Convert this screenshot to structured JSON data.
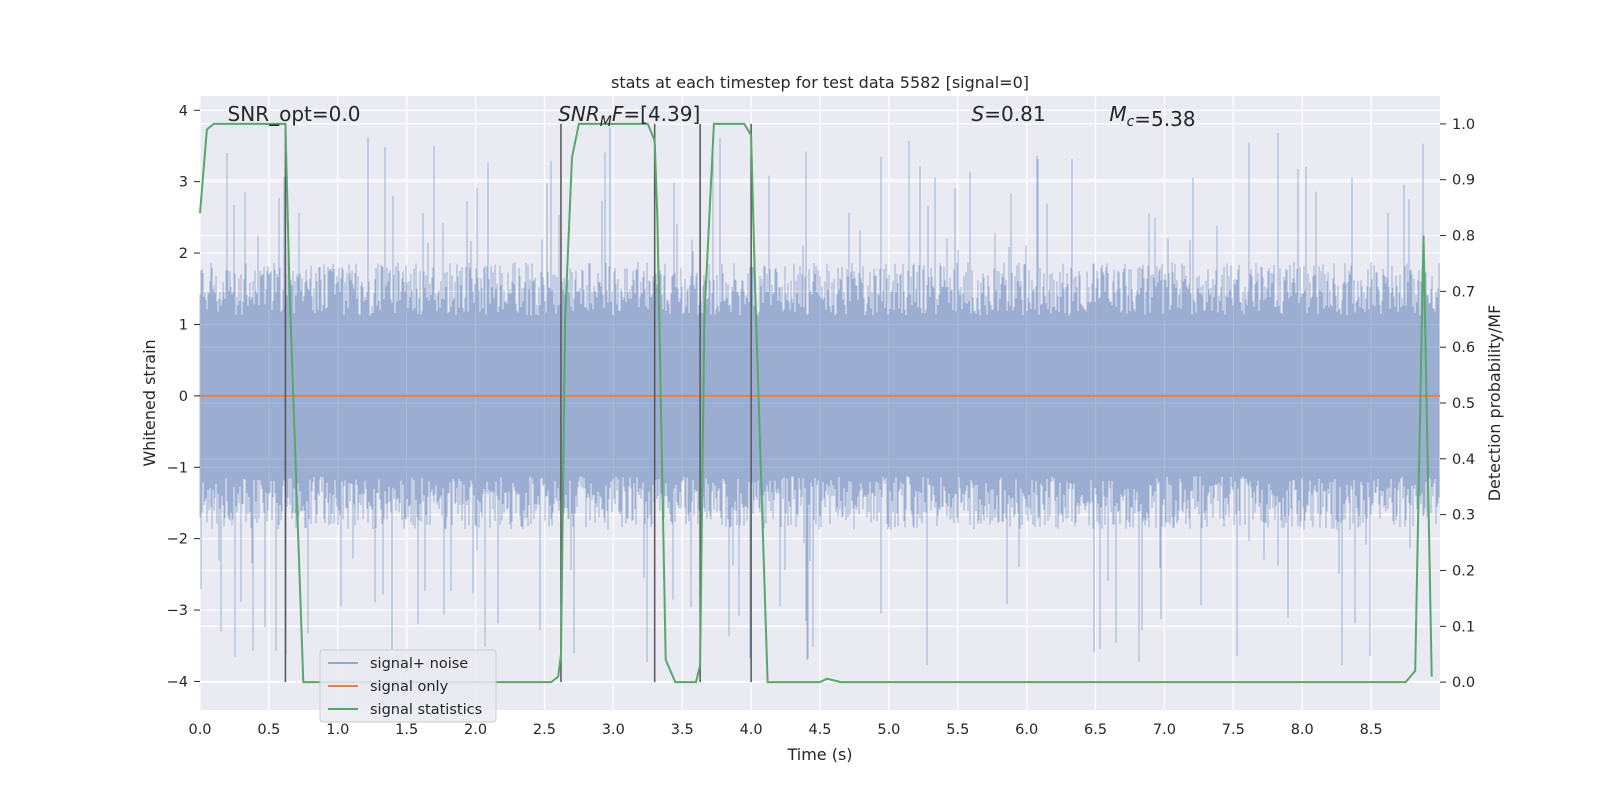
{
  "chart_data": {
    "type": "line",
    "title": "stats at each timestep for test data 5582 [signal=0]",
    "xlabel": "Time (s)",
    "ylabel": "Whitened strain",
    "y2label": "Detection probability/MF",
    "xlim": [
      0.0,
      9.0
    ],
    "ylim": [
      -4.4,
      4.2
    ],
    "y2lim": [
      -0.05,
      1.05
    ],
    "xticks": [
      "0.0",
      "0.5",
      "1.0",
      "1.5",
      "2.0",
      "2.5",
      "3.0",
      "3.5",
      "4.0",
      "4.5",
      "5.0",
      "5.5",
      "6.0",
      "6.5",
      "7.0",
      "7.5",
      "8.0",
      "8.5"
    ],
    "yticks": [
      "4",
      "3",
      "2",
      "1",
      "0",
      "−1",
      "−2",
      "−3",
      "−4"
    ],
    "y2ticks": [
      "1.0",
      "0.9",
      "0.8",
      "0.7",
      "0.6",
      "0.5",
      "0.4",
      "0.3",
      "0.2",
      "0.1",
      "0.0"
    ],
    "grid": true,
    "legend_placement": "lower-left",
    "annotations": [
      {
        "label": "SNR_opt=0.0",
        "x": 0.2,
        "y": 3.95
      },
      {
        "label": "SNR_MF=[4.39]",
        "x": 2.6,
        "y": 3.95
      },
      {
        "label": "S=0.81",
        "x": 5.6,
        "y": 3.95
      },
      {
        "label": "M_c=5.38",
        "x": 6.6,
        "y": 3.95
      }
    ],
    "vlines": [
      0.62,
      2.62,
      3.3,
      3.63,
      4.0
    ],
    "series": [
      {
        "name": "signal+ noise",
        "color": "#4c72b0",
        "kind": "noise",
        "typical_amplitude": 1.5,
        "peak_amplitude": 3.8
      },
      {
        "name": "signal only",
        "color": "#dd8452",
        "kind": "constant",
        "value": 0.0
      },
      {
        "name": "signal statistics",
        "color": "#55a868",
        "axis": "right",
        "x": [
          0.0,
          0.05,
          0.1,
          0.15,
          0.6,
          0.62,
          0.65,
          0.75,
          1.0,
          2.0,
          2.25,
          2.55,
          2.6,
          2.62,
          2.65,
          2.7,
          2.75,
          3.25,
          3.3,
          3.32,
          3.38,
          3.45,
          3.55,
          3.6,
          3.63,
          3.66,
          3.73,
          3.95,
          4.0,
          4.03,
          4.12,
          4.5,
          4.55,
          4.65,
          8.2,
          8.75,
          8.82,
          8.88,
          8.94
        ],
        "values": [
          0.84,
          0.99,
          1.0,
          1.0,
          1.0,
          1.0,
          0.7,
          0.0,
          0.0,
          0.0,
          0.0,
          0.0,
          0.01,
          0.05,
          0.65,
          0.94,
          1.0,
          1.0,
          0.97,
          0.83,
          0.04,
          0.0,
          0.0,
          0.0,
          0.03,
          0.65,
          1.0,
          1.0,
          0.98,
          0.7,
          0.0,
          0.0,
          0.006,
          0.0,
          0.0,
          0.0,
          0.02,
          0.8,
          0.01
        ]
      }
    ]
  }
}
